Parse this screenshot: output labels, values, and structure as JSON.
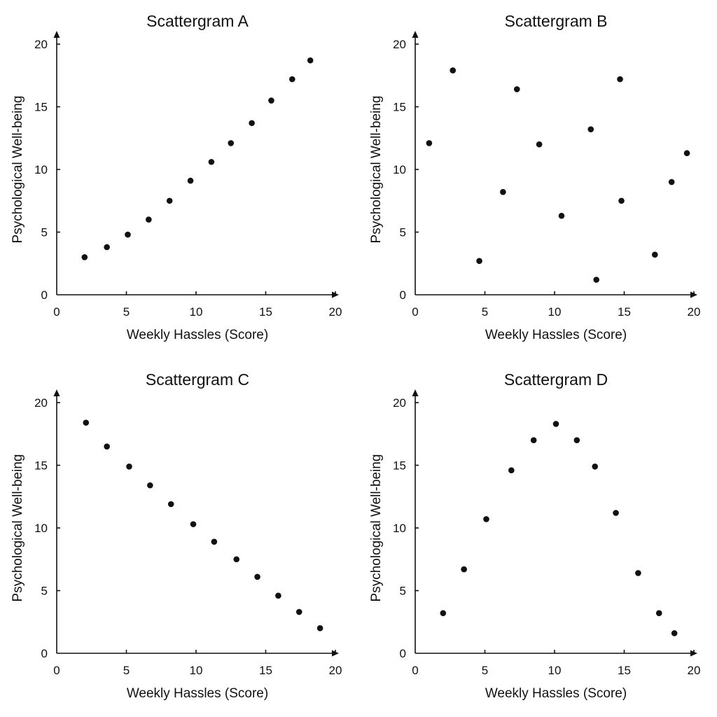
{
  "chart_data": [
    {
      "type": "scatter",
      "title": "Scattergram A",
      "xlabel": "Weekly Hassles (Score)",
      "ylabel": "Psychological Well-being",
      "xlim": [
        0,
        20
      ],
      "ylim": [
        0,
        20
      ],
      "xticks": [
        "0",
        "5",
        "10",
        "15",
        "20"
      ],
      "yticks": [
        "0",
        "5",
        "10",
        "15",
        "20"
      ],
      "points": [
        [
          2.0,
          3.0
        ],
        [
          3.6,
          3.8
        ],
        [
          5.1,
          4.8
        ],
        [
          6.6,
          6.0
        ],
        [
          8.1,
          7.5
        ],
        [
          9.6,
          9.1
        ],
        [
          11.1,
          10.6
        ],
        [
          12.5,
          12.1
        ],
        [
          14.0,
          13.7
        ],
        [
          15.4,
          15.5
        ],
        [
          16.9,
          17.2
        ],
        [
          18.2,
          18.7
        ]
      ]
    },
    {
      "type": "scatter",
      "title": "Scattergram B",
      "xlabel": "Weekly Hassles (Score)",
      "ylabel": "Psychological Well-being",
      "xlim": [
        0,
        20
      ],
      "ylim": [
        0,
        20
      ],
      "xticks": [
        "0",
        "5",
        "10",
        "15",
        "20"
      ],
      "yticks": [
        "0",
        "5",
        "10",
        "15",
        "20"
      ],
      "points": [
        [
          1.0,
          12.1
        ],
        [
          2.7,
          17.9
        ],
        [
          4.6,
          2.7
        ],
        [
          6.3,
          8.2
        ],
        [
          7.3,
          16.4
        ],
        [
          8.9,
          12.0
        ],
        [
          10.5,
          6.3
        ],
        [
          12.6,
          13.2
        ],
        [
          13.0,
          1.2
        ],
        [
          14.7,
          17.2
        ],
        [
          14.8,
          7.5
        ],
        [
          17.2,
          3.2
        ],
        [
          18.4,
          9.0
        ],
        [
          19.5,
          11.3
        ]
      ]
    },
    {
      "type": "scatter",
      "title": "Scattergram C",
      "xlabel": "Weekly Hassles (Score)",
      "ylabel": "Psychological Well-being",
      "xlim": [
        0,
        20
      ],
      "ylim": [
        0,
        20
      ],
      "xticks": [
        "0",
        "5",
        "10",
        "15",
        "20"
      ],
      "yticks": [
        "0",
        "5",
        "10",
        "15",
        "20"
      ],
      "points": [
        [
          2.1,
          18.4
        ],
        [
          3.6,
          16.5
        ],
        [
          5.2,
          14.9
        ],
        [
          6.7,
          13.4
        ],
        [
          8.2,
          11.9
        ],
        [
          9.8,
          10.3
        ],
        [
          11.3,
          8.9
        ],
        [
          12.9,
          7.5
        ],
        [
          14.4,
          6.1
        ],
        [
          15.9,
          4.6
        ],
        [
          17.4,
          3.3
        ],
        [
          18.9,
          2.0
        ]
      ]
    },
    {
      "type": "scatter",
      "title": "Scattergram D",
      "xlabel": "Weekly Hassles (Score)",
      "ylabel": "Psychological Well-being",
      "xlim": [
        0,
        20
      ],
      "ylim": [
        0,
        20
      ],
      "xticks": [
        "0",
        "5",
        "10",
        "15",
        "20"
      ],
      "yticks": [
        "0",
        "5",
        "10",
        "15",
        "20"
      ],
      "points": [
        [
          2.0,
          3.2
        ],
        [
          3.5,
          6.7
        ],
        [
          5.1,
          10.7
        ],
        [
          6.9,
          14.6
        ],
        [
          8.5,
          17.0
        ],
        [
          10.1,
          18.3
        ],
        [
          11.6,
          17.0
        ],
        [
          12.9,
          14.9
        ],
        [
          14.4,
          11.2
        ],
        [
          16.0,
          6.4
        ],
        [
          17.5,
          3.2
        ],
        [
          18.6,
          1.6
        ]
      ]
    }
  ],
  "style": {
    "point_color": "#111111",
    "axis_color": "#111111",
    "background": "#ffffff"
  }
}
